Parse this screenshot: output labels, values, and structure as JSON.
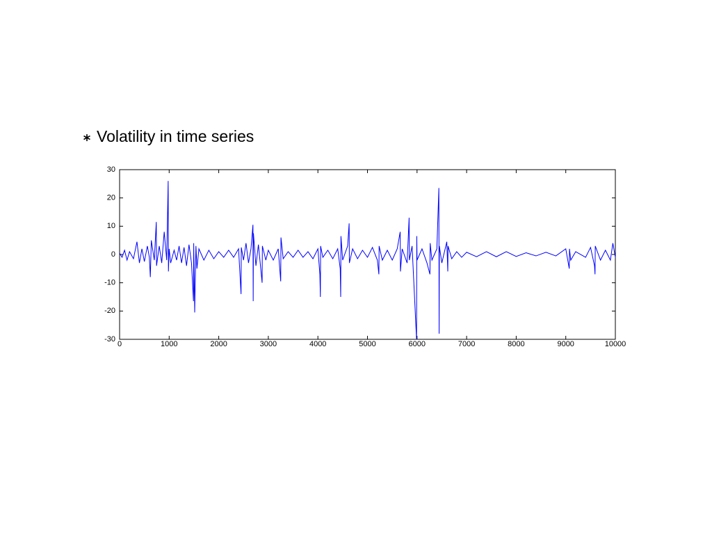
{
  "chart_data": {
    "type": "line",
    "title": "Volatility in time series",
    "x": [
      0,
      50,
      100,
      150,
      200,
      280,
      350,
      400,
      450,
      500,
      560,
      600,
      620,
      640,
      700,
      740,
      745,
      800,
      850,
      900,
      950,
      980,
      985,
      1000,
      1030,
      1100,
      1150,
      1200,
      1250,
      1300,
      1350,
      1400,
      1450,
      1490,
      1495,
      1515,
      1520,
      1540,
      1560,
      1600,
      1700,
      1800,
      1900,
      2000,
      2100,
      2200,
      2300,
      2400,
      2450,
      2455,
      2500,
      2550,
      2600,
      2650,
      2690,
      2695,
      2700,
      2750,
      2800,
      2875,
      2880,
      2950,
      3000,
      3100,
      3200,
      3250,
      3255,
      3300,
      3400,
      3500,
      3600,
      3700,
      3800,
      3900,
      4000,
      4040,
      4050,
      4055,
      4100,
      4200,
      4300,
      4400,
      4450,
      4460,
      4465,
      4500,
      4600,
      4630,
      4635,
      4700,
      4800,
      4900,
      5000,
      5100,
      5200,
      5230,
      5235,
      5300,
      5400,
      5500,
      5600,
      5660,
      5665,
      5700,
      5800,
      5840,
      5845,
      5900,
      5990,
      5995,
      6000,
      6100,
      6200,
      6260,
      6265,
      6300,
      6400,
      6440,
      6445,
      6450,
      6500,
      6600,
      6620,
      6625,
      6700,
      6800,
      6900,
      7000,
      7200,
      7400,
      7600,
      7800,
      8000,
      8200,
      8400,
      8600,
      8800,
      9000,
      9050,
      9070,
      9075,
      9100,
      9200,
      9400,
      9500,
      9580,
      9590,
      9595,
      9700,
      9800,
      9900,
      9950,
      10000
    ],
    "series": [
      {
        "color": "#0000ff",
        "values": [
          0.5,
          -1,
          1.5,
          -2,
          1,
          -1.5,
          4.5,
          -3,
          2,
          -2.5,
          3,
          -1,
          -8,
          5,
          -2,
          11.5,
          -4,
          3,
          -3,
          8,
          -2,
          26,
          -6,
          2,
          -3,
          1.5,
          -2,
          3,
          -3,
          2.5,
          -4,
          3.5,
          -3,
          -16.5,
          4,
          -20.5,
          -15,
          3,
          -5,
          2,
          -2,
          1.5,
          -1.5,
          1,
          -1,
          1.5,
          -1,
          2,
          -14,
          2.5,
          -2,
          4,
          -3,
          2,
          10.5,
          -16.5,
          7.5,
          -4,
          3.5,
          -10,
          3,
          -2,
          1.5,
          -2,
          2,
          -9.5,
          6,
          -1.5,
          1,
          -1,
          1.5,
          -1,
          1,
          -1.5,
          2,
          -7,
          -15,
          3,
          -1,
          1.5,
          -1.5,
          2,
          -5,
          -15,
          6.5,
          -2,
          3,
          11,
          -3,
          2,
          -1.5,
          1.5,
          -1,
          2.5,
          -2,
          -7,
          3,
          -2,
          1.5,
          -2,
          2,
          8,
          -6,
          2,
          -3,
          13,
          -2,
          3,
          -30,
          6.5,
          -2,
          2,
          -3,
          -7,
          4,
          -2,
          2,
          23.5,
          -28,
          3,
          -3,
          4.5,
          -6,
          3,
          -1.5,
          1,
          -1,
          0.8,
          -0.8,
          1,
          -0.8,
          1,
          -0.7,
          0.6,
          -0.5,
          0.8,
          -0.5,
          2,
          -3,
          -5,
          2,
          -2,
          1,
          -1,
          2.5,
          -4,
          -7,
          3,
          -2,
          1.5,
          -2,
          4,
          -1
        ]
      }
    ],
    "xlim": [
      0,
      10000
    ],
    "xticks": [
      0,
      1000,
      2000,
      3000,
      4000,
      5000,
      6000,
      7000,
      8000,
      9000,
      10000
    ],
    "ylim": [
      -30,
      30
    ],
    "yticks": [
      -30,
      -20,
      -10,
      0,
      10,
      20,
      30
    ]
  }
}
